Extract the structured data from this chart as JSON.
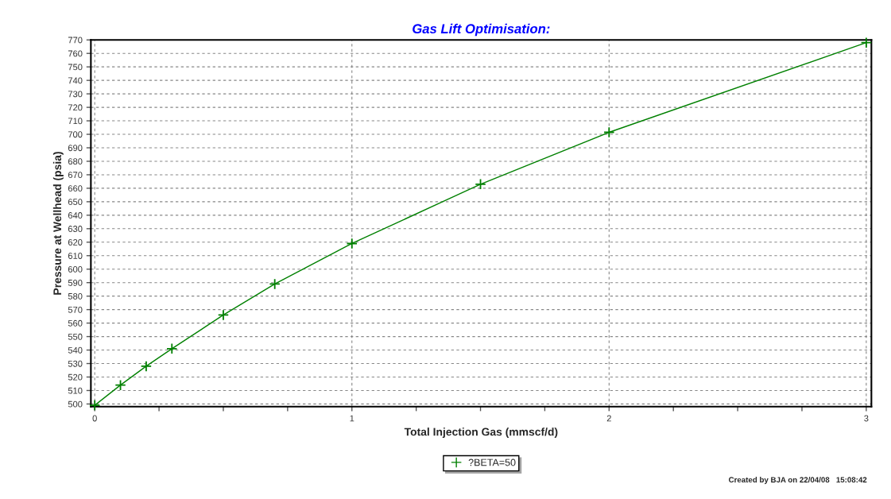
{
  "chart_data": {
    "type": "line",
    "title": "Gas Lift Optimisation:",
    "xlabel": "Total Injection Gas (mmscf/d)",
    "ylabel": "Pressure at Wellhead (psia)",
    "x": [
      0,
      0.1,
      0.2,
      0.3,
      0.5,
      0.7,
      1,
      1.5,
      2,
      3
    ],
    "series": [
      {
        "name": "?BETA=50",
        "color": "#008000",
        "values": [
          499,
          514,
          528,
          541,
          566,
          589,
          619,
          663,
          701.5,
          768
        ]
      }
    ],
    "xlim": [
      -0.015,
      3.02
    ],
    "ylim": [
      498,
      770
    ],
    "xticks": [
      0,
      {
        "value": 0.25,
        "label": null
      },
      {
        "value": 0.5,
        "label": null
      },
      {
        "value": 0.75,
        "label": null
      },
      1,
      {
        "value": 1.25,
        "label": null
      },
      {
        "value": 1.5,
        "label": null
      },
      {
        "value": 1.75,
        "label": null
      },
      2,
      {
        "value": 2.25,
        "label": null
      },
      {
        "value": 2.5,
        "label": null
      },
      {
        "value": 2.75,
        "label": null
      },
      3
    ],
    "yticks": [
      500,
      510,
      520,
      530,
      540,
      550,
      560,
      570,
      580,
      590,
      600,
      610,
      620,
      630,
      640,
      650,
      660,
      670,
      680,
      690,
      700,
      710,
      720,
      730,
      740,
      750,
      760,
      770
    ],
    "grid": true,
    "marker": "cross",
    "line_style": "solid",
    "legend": "bottom",
    "annotations": [
      "Created by BJA on 22/04/08   15:08:42"
    ]
  }
}
